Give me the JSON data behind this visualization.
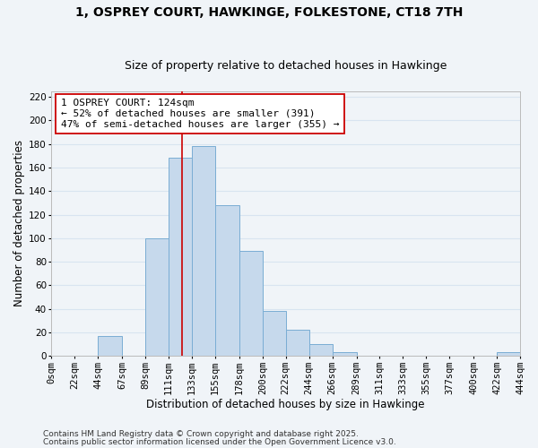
{
  "title_line1": "1, OSPREY COURT, HAWKINGE, FOLKESTONE, CT18 7TH",
  "title_line2": "Size of property relative to detached houses in Hawkinge",
  "xlabel": "Distribution of detached houses by size in Hawkinge",
  "ylabel": "Number of detached properties",
  "bin_edges": [
    0,
    22,
    44,
    67,
    89,
    111,
    133,
    155,
    178,
    200,
    222,
    244,
    266,
    289,
    311,
    333,
    355,
    377,
    400,
    422,
    444
  ],
  "bin_labels": [
    "0sqm",
    "22sqm",
    "44sqm",
    "67sqm",
    "89sqm",
    "111sqm",
    "133sqm",
    "155sqm",
    "178sqm",
    "200sqm",
    "222sqm",
    "244sqm",
    "266sqm",
    "289sqm",
    "311sqm",
    "333sqm",
    "355sqm",
    "377sqm",
    "400sqm",
    "422sqm",
    "444sqm"
  ],
  "counts": [
    0,
    0,
    17,
    0,
    100,
    168,
    178,
    128,
    89,
    38,
    22,
    10,
    3,
    0,
    0,
    0,
    0,
    0,
    0,
    3
  ],
  "bar_color": "#c6d9ec",
  "bar_edge_color": "#7aadd4",
  "vline_x": 124,
  "vline_color": "#cc0000",
  "ylim": [
    0,
    225
  ],
  "yticks": [
    0,
    20,
    40,
    60,
    80,
    100,
    120,
    140,
    160,
    180,
    200,
    220
  ],
  "annotation_line1": "1 OSPREY COURT: 124sqm",
  "annotation_line2": "← 52% of detached houses are smaller (391)",
  "annotation_line3": "47% of semi-detached houses are larger (355) →",
  "footnote_line1": "Contains HM Land Registry data © Crown copyright and database right 2025.",
  "footnote_line2": "Contains public sector information licensed under the Open Government Licence v3.0.",
  "bg_color": "#f0f4f8",
  "grid_color": "#d8e4f0",
  "title_fontsize": 10,
  "subtitle_fontsize": 9,
  "axis_label_fontsize": 8.5,
  "tick_fontsize": 7.5,
  "annotation_fontsize": 8,
  "footnote_fontsize": 6.5
}
